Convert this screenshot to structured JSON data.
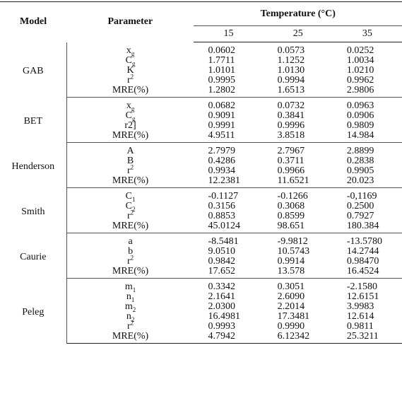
{
  "header": {
    "model": "Model",
    "parameter": "Parameter",
    "temperature": "Temperature (°C)",
    "temps": [
      "15",
      "25",
      "35"
    ]
  },
  "groups": [
    {
      "model": "GAB",
      "rows": [
        {
          "param": "x",
          "sub": "g",
          "v": [
            "0.0602",
            "0.0573",
            "0.0252"
          ]
        },
        {
          "param": "C",
          "sub": "g",
          "v": [
            "1.7711",
            "1.1252",
            "1.0034"
          ]
        },
        {
          "param": "K",
          "v": [
            "1.0101",
            "1.0130",
            "1.0210"
          ]
        },
        {
          "param": "r",
          "sup": "2",
          "v": [
            "0.9995",
            "0.9994",
            "0.9962"
          ]
        },
        {
          "param": "MRE(%)",
          "v": [
            "1.2802",
            "1.6513",
            "2.9806"
          ]
        }
      ]
    },
    {
      "model": "BET",
      "rows": [
        {
          "param": "x",
          "sub": "g",
          "v": [
            "0.0682",
            "0.0732",
            "0.0963"
          ]
        },
        {
          "param": "C",
          "sub": "g",
          "v": [
            "0.9091",
            "0.3841",
            "0.0906"
          ]
        },
        {
          "param": "r2]",
          "v": [
            "0.9991",
            "0.9996",
            "0.9809"
          ]
        },
        {
          "param": "MRE(%)",
          "v": [
            "4.9511",
            "3.8518",
            "14.984"
          ]
        }
      ]
    },
    {
      "model": "Henderson",
      "rows": [
        {
          "param": "A",
          "v": [
            "2.7979",
            "2.7967",
            "2.8899"
          ]
        },
        {
          "param": "B",
          "v": [
            "0.4286",
            "0.3711",
            "0.2838"
          ]
        },
        {
          "param": "r",
          "sup": "2",
          "v": [
            "0.9934",
            "0.9966",
            "0.9905"
          ]
        },
        {
          "param": "MRE(%)",
          "v": [
            "12.2381",
            "11.6521",
            "20.023"
          ]
        }
      ]
    },
    {
      "model": "Smith",
      "rows": [
        {
          "param": "C",
          "sub": "1",
          "v": [
            "-0.1127",
            "-0.1266",
            "-0,1169"
          ]
        },
        {
          "param": "C",
          "sub": "2",
          "v": [
            "0.3156",
            "0.3068",
            "0.2500"
          ]
        },
        {
          "param": "r",
          "sup": "2",
          "v": [
            "0.8853",
            "0.8599",
            "0.7927"
          ]
        },
        {
          "param": "MRE(%)",
          "v": [
            "45.0124",
            "98.651",
            "180.384"
          ]
        }
      ]
    },
    {
      "model": "Caurie",
      "rows": [
        {
          "param": "a",
          "v": [
            "-8.5481",
            "-9.9812",
            "-13.5780"
          ]
        },
        {
          "param": "b",
          "v": [
            "9.0510",
            "10.5743",
            "14.2744"
          ]
        },
        {
          "param": "r",
          "sup": "2",
          "v": [
            "0.9842",
            "0.9914",
            "0.98470"
          ]
        },
        {
          "param": "MRE(%)",
          "v": [
            "17.652",
            "13.578",
            "16.4524"
          ]
        }
      ]
    },
    {
      "model": "Peleg",
      "rows": [
        {
          "param": "m",
          "sub": "1",
          "v": [
            "0.3342",
            "0.3051",
            "-2.1580"
          ]
        },
        {
          "param": "n",
          "sub": "1",
          "v": [
            "2.1641",
            "2.6090",
            "12.6151"
          ]
        },
        {
          "param": "m",
          "sub": "2",
          "v": [
            "2.0300",
            "2.2014",
            "3.9983"
          ]
        },
        {
          "param": "n",
          "sub": "2",
          "v": [
            "16.4981",
            "17.3481",
            "12.614"
          ]
        },
        {
          "param": "r",
          "sup": "2",
          "v": [
            "0.9993",
            "0.9990",
            "0.9811"
          ]
        },
        {
          "param": "MRE(%)",
          "v": [
            "4.7942",
            "6.12342",
            "25.3211"
          ]
        }
      ]
    }
  ]
}
